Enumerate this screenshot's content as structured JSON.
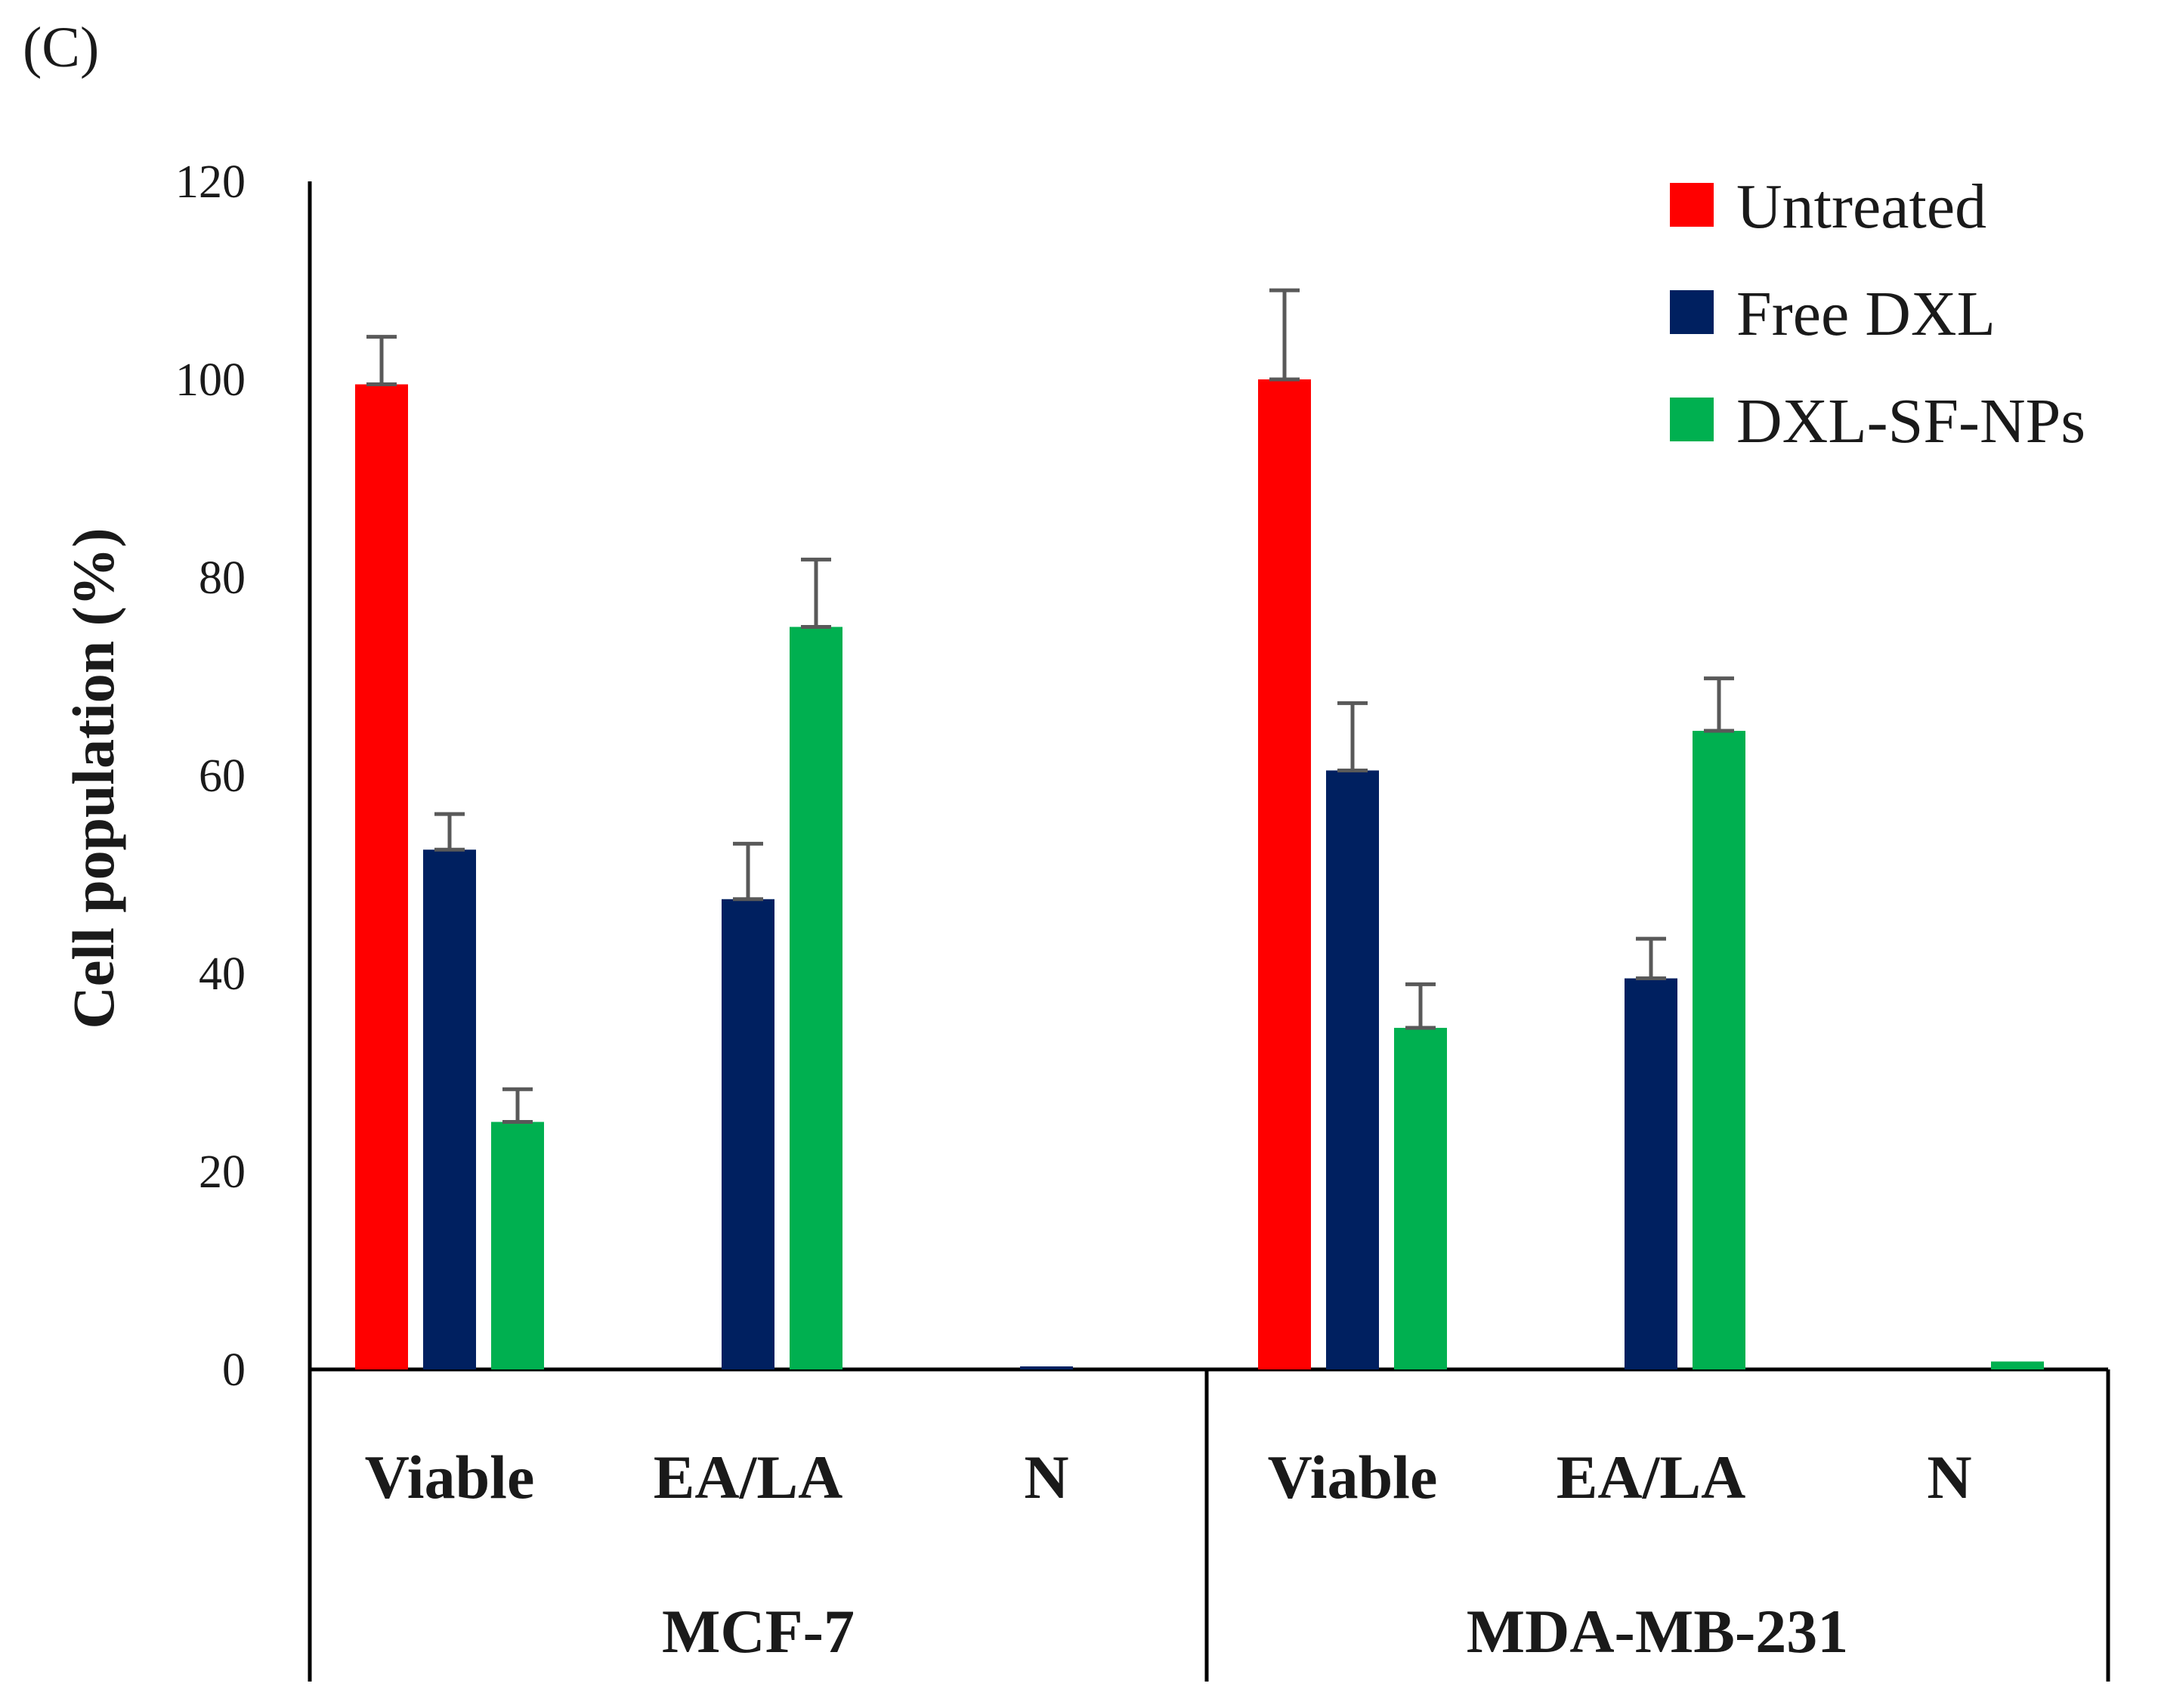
{
  "panel_label": "(C)",
  "chart_data": {
    "type": "bar",
    "title": "",
    "xlabel": "",
    "ylabel": "Cell population (%)",
    "ylim": [
      0,
      120
    ],
    "yticks": [
      0,
      20,
      40,
      60,
      80,
      100,
      120
    ],
    "groups": [
      {
        "name": "MCF-7",
        "categories": [
          "Viable",
          "EA/LA",
          "N"
        ]
      },
      {
        "name": "MDA-MB-231",
        "categories": [
          "Viable",
          "EA/LA",
          "N"
        ]
      }
    ],
    "series": [
      {
        "name": "Untreated",
        "color": "#ff0000",
        "values": [
          99.5,
          0,
          0,
          100,
          0,
          0
        ],
        "errors": [
          4.8,
          0,
          0,
          9,
          0,
          0
        ]
      },
      {
        "name": "Free DXL",
        "color": "#002060",
        "values": [
          52.5,
          47.5,
          0.2,
          60.5,
          39.5,
          0
        ],
        "errors": [
          3.6,
          5.6,
          0,
          6.8,
          4.0,
          0
        ]
      },
      {
        "name": "DXL-SF-NPs",
        "color": "#00b050",
        "values": [
          25,
          75,
          0,
          34.5,
          64.5,
          0.8
        ],
        "errors": [
          3.3,
          6.8,
          0,
          4.4,
          5.3,
          0
        ]
      }
    ],
    "legend": "top-right"
  }
}
